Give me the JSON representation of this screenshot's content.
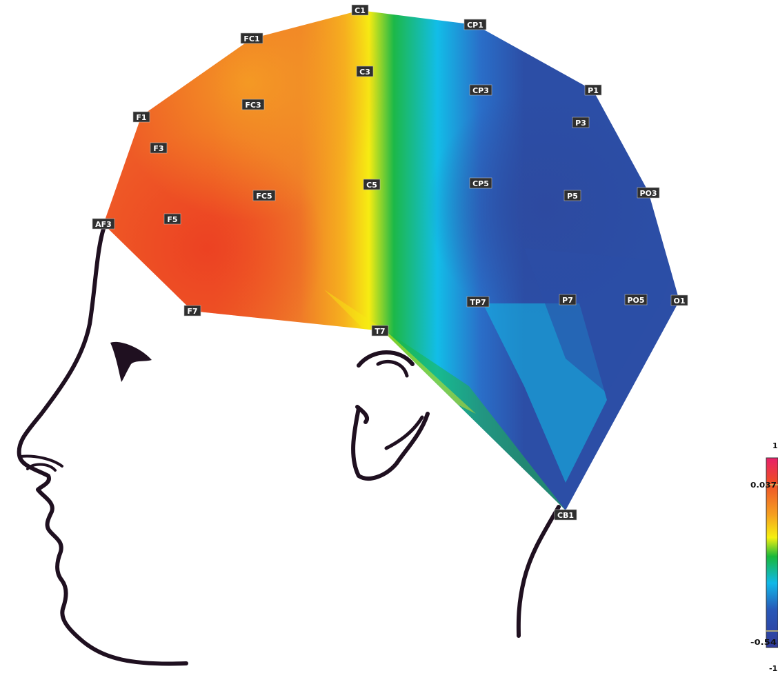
{
  "figure": {
    "electrodes": [
      {
        "label": "C1"
      },
      {
        "label": "CP1"
      },
      {
        "label": "FC1"
      },
      {
        "label": "C3"
      },
      {
        "label": "FC3"
      },
      {
        "label": "CP3"
      },
      {
        "label": "P1"
      },
      {
        "label": "F1"
      },
      {
        "label": "P3"
      },
      {
        "label": "F3"
      },
      {
        "label": "C5"
      },
      {
        "label": "CP5"
      },
      {
        "label": "FC5"
      },
      {
        "label": "P5"
      },
      {
        "label": "PO3"
      },
      {
        "label": "AF3"
      },
      {
        "label": "F5"
      },
      {
        "label": "TP7"
      },
      {
        "label": "P7"
      },
      {
        "label": "PO5"
      },
      {
        "label": "O1"
      },
      {
        "label": "F7"
      },
      {
        "label": "T7"
      },
      {
        "label": "CB1"
      }
    ],
    "colorbar": {
      "max_label": "1",
      "min_label": "-1",
      "upper_marker_label": "0.037",
      "lower_marker_label": "-0.54",
      "colors": [
        "#e8206a",
        "#ee4a2a",
        "#f5a020",
        "#f5f010",
        "#18b83a",
        "#10b8e8",
        "#2858b8",
        "#303a98"
      ]
    },
    "map_colors": {
      "red_orange": "#ee5a26",
      "orange": "#f39a28",
      "yellow": "#f6ec12",
      "green": "#1cb848",
      "cyan": "#12bde8",
      "blue": "#2c4ea6",
      "outline": "#1f1020"
    }
  }
}
